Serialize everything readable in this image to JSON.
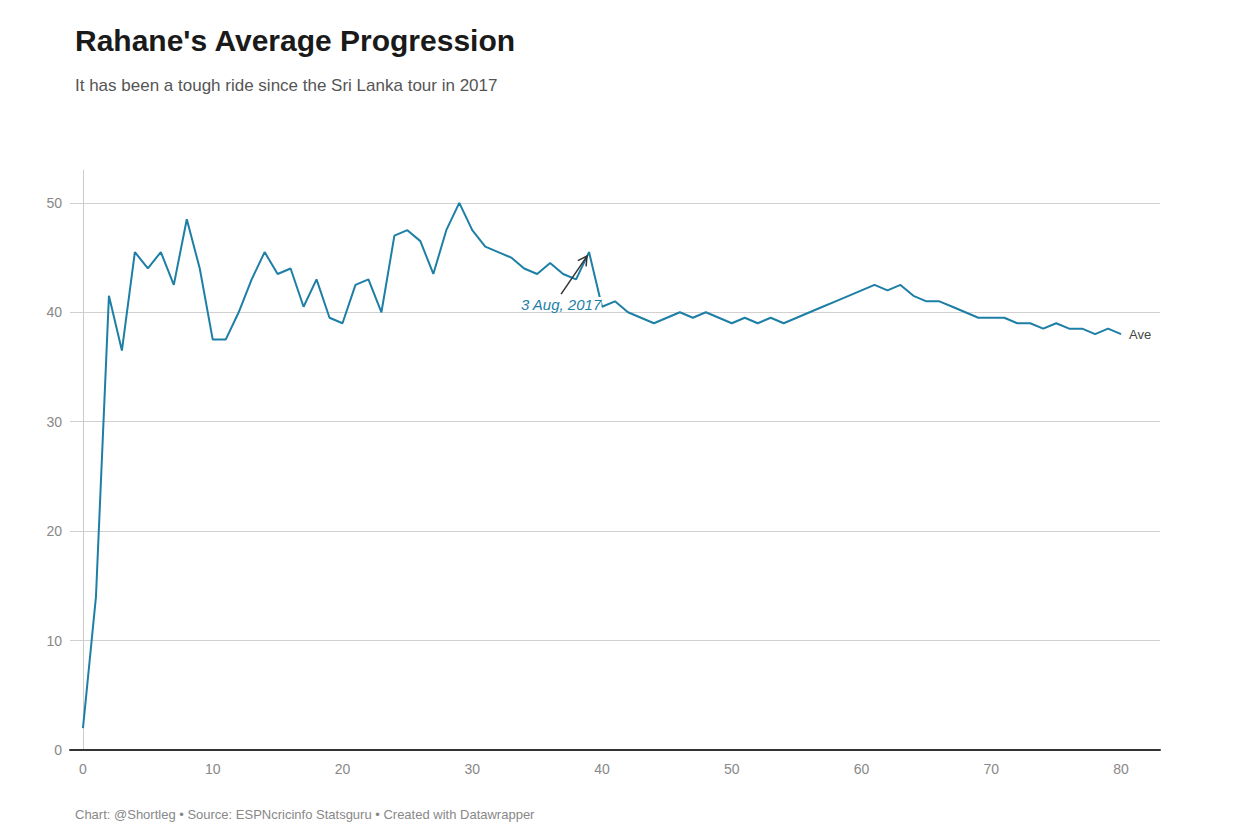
{
  "chart_data": {
    "type": "line",
    "title": "Rahane's Average Progression",
    "subtitle": "It has been a tough ride since the Sri Lanka tour in 2017",
    "footer": "Chart: @Shortleg • Source: ESPNcricinfo Statsguru • Created with Datawrapper",
    "xlim": [
      -1,
      83
    ],
    "ylim": [
      0,
      53
    ],
    "xticks": [
      0,
      10,
      20,
      30,
      40,
      50,
      60,
      70,
      80
    ],
    "yticks": [
      0,
      10,
      20,
      30,
      40,
      50
    ],
    "grid": true,
    "annotations": [
      {
        "text": "3 Aug, 2017",
        "x": 39,
        "y": 45.5,
        "color": "#1d7fa5"
      }
    ],
    "series": [
      {
        "name": "Ave",
        "color": "#1d7fa5",
        "x": [
          0,
          1,
          2,
          3,
          4,
          5,
          6,
          7,
          8,
          9,
          10,
          11,
          12,
          13,
          14,
          15,
          16,
          17,
          18,
          19,
          20,
          21,
          22,
          23,
          24,
          25,
          26,
          27,
          28,
          29,
          30,
          31,
          32,
          33,
          34,
          35,
          36,
          37,
          38,
          39,
          40,
          41,
          42,
          43,
          44,
          45,
          46,
          47,
          48,
          49,
          50,
          51,
          52,
          53,
          54,
          55,
          56,
          57,
          58,
          59,
          60,
          61,
          62,
          63,
          64,
          65,
          66,
          67,
          68,
          69,
          70,
          71,
          72,
          73,
          74,
          75,
          76,
          77,
          78,
          79,
          80
        ],
        "values": [
          2.0,
          14.0,
          41.5,
          36.5,
          45.5,
          44.0,
          45.5,
          42.5,
          48.5,
          44.0,
          37.5,
          37.5,
          40.0,
          43.0,
          45.5,
          43.5,
          44.0,
          40.5,
          43.0,
          39.5,
          39.0,
          42.5,
          43.0,
          40.0,
          47.0,
          47.5,
          46.5,
          43.5,
          47.5,
          50.0,
          47.5,
          46.0,
          45.5,
          45.0,
          44.0,
          43.5,
          44.5,
          43.5,
          43.0,
          45.5,
          40.5,
          41.0,
          40.0,
          39.5,
          39.0,
          39.5,
          40.0,
          39.5,
          40.0,
          39.5,
          39.0,
          39.5,
          39.0,
          39.5,
          39.0,
          39.5,
          40.0,
          40.5,
          41.0,
          41.5,
          42.0,
          42.5,
          42.0,
          42.5,
          41.5,
          41.0,
          41.0,
          40.5,
          40.0,
          39.5,
          39.5,
          39.5,
          39.0,
          39.0,
          38.5,
          39.0,
          38.5,
          38.5,
          38.0,
          38.5,
          38.0
        ]
      }
    ]
  }
}
